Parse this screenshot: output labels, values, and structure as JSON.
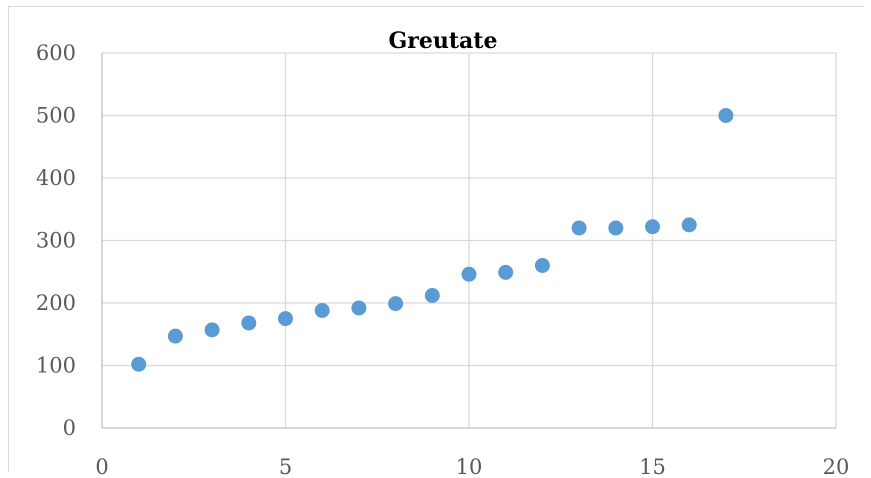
{
  "chart_data": {
    "type": "scatter",
    "title": "Greutate",
    "xlabel": "",
    "ylabel": "",
    "xlim": [
      0,
      20
    ],
    "ylim": [
      0,
      600
    ],
    "x_ticks": [
      0,
      5,
      10,
      15,
      20
    ],
    "y_ticks": [
      0,
      100,
      200,
      300,
      400,
      500,
      600
    ],
    "grid": true,
    "legend": "none",
    "marker_color": "#5B9BD5",
    "grid_color": "#d9d9d9",
    "series": [
      {
        "x": [
          1,
          2,
          3,
          4,
          5,
          6,
          7,
          8,
          9,
          10,
          11,
          12,
          13,
          14,
          15,
          16,
          17
        ],
        "y": [
          102,
          147,
          157,
          168,
          175,
          188,
          192,
          199,
          212,
          246,
          249,
          260,
          320,
          320,
          322,
          325,
          500
        ]
      }
    ]
  }
}
